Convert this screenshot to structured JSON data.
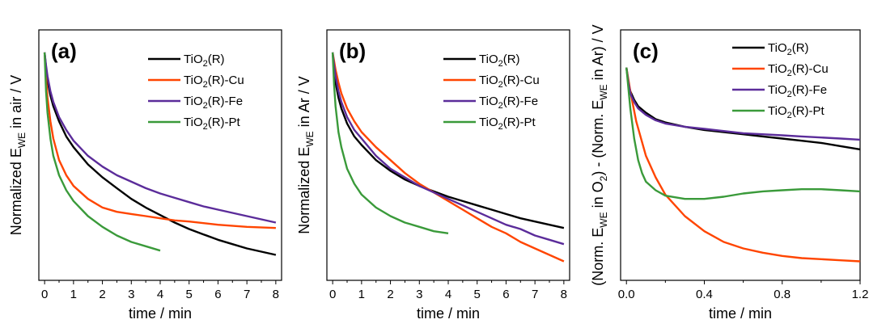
{
  "chart_data": [
    {
      "type": "line",
      "panel_label": "(a)",
      "xlabel": "time / min",
      "ylabel_prefix": "Normalized E",
      "ylabel_sub": "WE",
      "ylabel_suffix": " in air / V",
      "xlim": [
        -0.2,
        8.2
      ],
      "ylim": [
        0,
        1
      ],
      "xticks": [
        "0",
        "1",
        "2",
        "3",
        "4",
        "5",
        "6",
        "7",
        "8"
      ],
      "y_tick_labels": "none",
      "legend_position": "top-right",
      "series": [
        {
          "name": "TiO2(R)",
          "color": "#000000",
          "x": [
            0,
            0.05,
            0.1,
            0.2,
            0.3,
            0.5,
            0.75,
            1,
            1.5,
            2,
            2.5,
            3,
            3.5,
            4,
            4.5,
            5,
            5.5,
            6,
            6.5,
            7,
            7.5,
            8
          ],
          "y": [
            1.0,
            0.93,
            0.87,
            0.8,
            0.75,
            0.68,
            0.61,
            0.56,
            0.48,
            0.42,
            0.37,
            0.32,
            0.28,
            0.245,
            0.21,
            0.18,
            0.155,
            0.13,
            0.11,
            0.09,
            0.075,
            0.06
          ]
        },
        {
          "name": "TiO2(R)-Cu",
          "color": "#ff4500",
          "x": [
            0,
            0.05,
            0.1,
            0.2,
            0.3,
            0.5,
            0.75,
            1,
            1.5,
            2,
            2.5,
            3,
            3.5,
            4,
            4.5,
            5,
            6,
            7,
            8
          ],
          "y": [
            1.0,
            0.88,
            0.79,
            0.68,
            0.6,
            0.5,
            0.43,
            0.38,
            0.32,
            0.28,
            0.26,
            0.25,
            0.24,
            0.23,
            0.22,
            0.215,
            0.2,
            0.19,
            0.185
          ]
        },
        {
          "name": "TiO2(R)-Fe",
          "color": "#5b2c9a",
          "x": [
            0,
            0.05,
            0.1,
            0.2,
            0.3,
            0.5,
            0.75,
            1,
            1.5,
            2,
            2.5,
            3,
            3.5,
            4,
            4.5,
            5,
            5.5,
            6,
            6.5,
            7,
            7.5,
            8
          ],
          "y": [
            1.0,
            0.94,
            0.89,
            0.82,
            0.77,
            0.7,
            0.64,
            0.59,
            0.52,
            0.47,
            0.43,
            0.4,
            0.37,
            0.345,
            0.325,
            0.305,
            0.285,
            0.27,
            0.255,
            0.24,
            0.225,
            0.21
          ]
        },
        {
          "name": "TiO2(R)-Pt",
          "color": "#3a9a3a",
          "x": [
            0,
            0.05,
            0.1,
            0.2,
            0.3,
            0.5,
            0.75,
            1,
            1.5,
            2,
            2.5,
            3,
            3.5,
            4
          ],
          "y": [
            1.0,
            0.82,
            0.72,
            0.6,
            0.52,
            0.43,
            0.36,
            0.31,
            0.24,
            0.19,
            0.15,
            0.12,
            0.1,
            0.08
          ]
        }
      ]
    },
    {
      "type": "line",
      "panel_label": "(b)",
      "xlabel": "time / min",
      "ylabel_prefix": "Normalized E",
      "ylabel_sub": "WE",
      "ylabel_suffix": " in Ar / V",
      "xlim": [
        -0.2,
        8.2
      ],
      "ylim": [
        0,
        1
      ],
      "xticks": [
        "0",
        "1",
        "2",
        "3",
        "4",
        "5",
        "6",
        "7",
        "8"
      ],
      "y_tick_labels": "none",
      "legend_position": "top-right",
      "series": [
        {
          "name": "TiO2(R)",
          "color": "#000000",
          "x": [
            0,
            0.05,
            0.1,
            0.2,
            0.3,
            0.5,
            0.75,
            1,
            1.5,
            2,
            2.5,
            3,
            3.5,
            4,
            4.5,
            5,
            5.5,
            6,
            6.5,
            7,
            7.5,
            8
          ],
          "y": [
            1.0,
            0.92,
            0.86,
            0.79,
            0.74,
            0.67,
            0.61,
            0.57,
            0.5,
            0.45,
            0.41,
            0.38,
            0.355,
            0.33,
            0.31,
            0.29,
            0.27,
            0.25,
            0.23,
            0.215,
            0.2,
            0.185
          ]
        },
        {
          "name": "TiO2(R)-Cu",
          "color": "#ff4500",
          "x": [
            0,
            0.05,
            0.1,
            0.2,
            0.3,
            0.5,
            0.75,
            1,
            1.5,
            2,
            2.5,
            3,
            3.5,
            4,
            4.5,
            5,
            5.5,
            6,
            6.5,
            7,
            7.5,
            8
          ],
          "y": [
            1.0,
            0.96,
            0.92,
            0.86,
            0.81,
            0.74,
            0.68,
            0.63,
            0.56,
            0.5,
            0.44,
            0.39,
            0.35,
            0.31,
            0.27,
            0.23,
            0.19,
            0.16,
            0.12,
            0.09,
            0.06,
            0.03
          ]
        },
        {
          "name": "TiO2(R)-Fe",
          "color": "#5b2c9a",
          "x": [
            0,
            0.05,
            0.1,
            0.2,
            0.3,
            0.5,
            0.75,
            1,
            1.5,
            2,
            2.5,
            3,
            3.5,
            4,
            4.5,
            5,
            5.5,
            6,
            6.5,
            7,
            7.5,
            8
          ],
          "y": [
            1.0,
            0.94,
            0.89,
            0.82,
            0.77,
            0.7,
            0.64,
            0.6,
            0.52,
            0.46,
            0.42,
            0.38,
            0.35,
            0.32,
            0.29,
            0.26,
            0.23,
            0.2,
            0.18,
            0.15,
            0.13,
            0.11
          ]
        },
        {
          "name": "TiO2(R)-Pt",
          "color": "#3a9a3a",
          "x": [
            0,
            0.05,
            0.1,
            0.2,
            0.3,
            0.5,
            0.75,
            1,
            1.5,
            2,
            2.5,
            3,
            3.5,
            4
          ],
          "y": [
            1.0,
            0.85,
            0.75,
            0.63,
            0.56,
            0.46,
            0.39,
            0.34,
            0.28,
            0.24,
            0.21,
            0.19,
            0.17,
            0.16
          ]
        }
      ]
    },
    {
      "type": "line",
      "panel_label": "(c)",
      "xlabel": "time / min",
      "ylabel_c": true,
      "xlim": [
        -0.03,
        1.2
      ],
      "ylim": [
        0,
        1
      ],
      "xticks": [
        "0.0",
        "0.4",
        "0.8",
        "1.2"
      ],
      "xtick_values": [
        0.0,
        0.4,
        0.8,
        1.2
      ],
      "y_tick_labels": "none",
      "legend_position": "top-right",
      "series": [
        {
          "name": "TiO2(R)",
          "color": "#000000",
          "x": [
            0,
            0.01,
            0.02,
            0.04,
            0.06,
            0.1,
            0.15,
            0.2,
            0.3,
            0.4,
            0.5,
            0.6,
            0.7,
            0.8,
            0.9,
            1.0,
            1.1,
            1.2
          ],
          "y": [
            0.93,
            0.86,
            0.82,
            0.78,
            0.75,
            0.72,
            0.69,
            0.675,
            0.655,
            0.64,
            0.63,
            0.62,
            0.61,
            0.6,
            0.59,
            0.58,
            0.565,
            0.55
          ]
        },
        {
          "name": "TiO2(R)-Cu",
          "color": "#ff4500",
          "x": [
            0,
            0.02,
            0.05,
            0.1,
            0.15,
            0.2,
            0.3,
            0.4,
            0.5,
            0.6,
            0.7,
            0.8,
            0.9,
            1.0,
            1.1,
            1.2
          ],
          "y": [
            0.93,
            0.82,
            0.68,
            0.52,
            0.42,
            0.34,
            0.24,
            0.17,
            0.12,
            0.09,
            0.07,
            0.055,
            0.045,
            0.04,
            0.035,
            0.03
          ]
        },
        {
          "name": "TiO2(R)-Fe",
          "color": "#5b2c9a",
          "x": [
            0,
            0.01,
            0.02,
            0.04,
            0.06,
            0.1,
            0.15,
            0.2,
            0.3,
            0.4,
            0.5,
            0.6,
            0.7,
            0.8,
            0.9,
            1.0,
            1.1,
            1.2
          ],
          "y": [
            0.93,
            0.86,
            0.81,
            0.77,
            0.74,
            0.71,
            0.685,
            0.67,
            0.655,
            0.645,
            0.635,
            0.625,
            0.62,
            0.615,
            0.61,
            0.605,
            0.6,
            0.595
          ]
        },
        {
          "name": "TiO2(R)-Pt",
          "color": "#3a9a3a",
          "x": [
            0,
            0.02,
            0.04,
            0.06,
            0.08,
            0.1,
            0.15,
            0.2,
            0.3,
            0.4,
            0.5,
            0.6,
            0.7,
            0.8,
            0.9,
            1.0,
            1.1,
            1.2
          ],
          "y": [
            0.93,
            0.74,
            0.6,
            0.5,
            0.44,
            0.4,
            0.36,
            0.335,
            0.32,
            0.32,
            0.33,
            0.345,
            0.355,
            0.36,
            0.365,
            0.365,
            0.36,
            0.355
          ]
        }
      ]
    }
  ]
}
